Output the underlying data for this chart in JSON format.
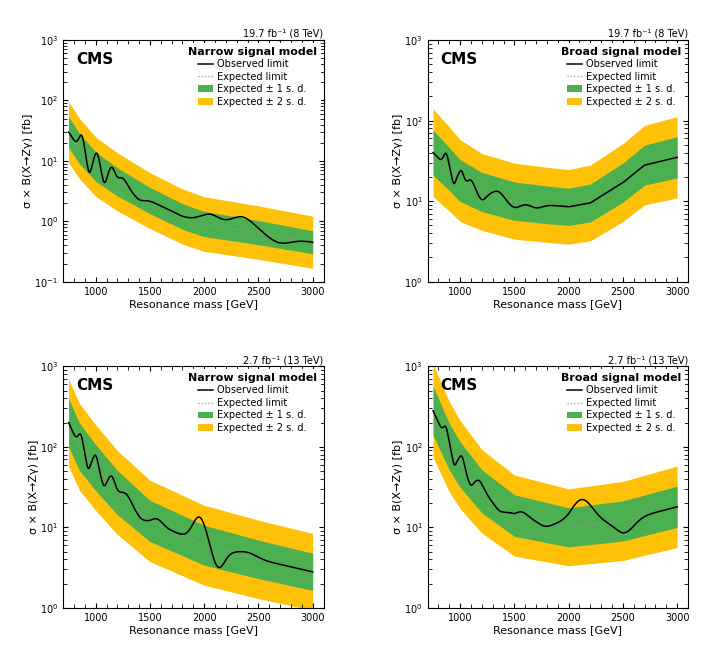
{
  "panels": [
    {
      "title": "Narrow signal model",
      "lumi": "19.7 fb⁻¹ (8 TeV)",
      "ylim": [
        0.1,
        1000
      ],
      "ylabel": "σ × B(X→Zγ) [fb]",
      "type": "narrow",
      "energy": "8TeV"
    },
    {
      "title": "Broad signal model",
      "lumi": "19.7 fb⁻¹ (8 TeV)",
      "ylim": [
        1,
        1000
      ],
      "ylabel": "σ × B(X→Zγ) [fb]",
      "type": "broad",
      "energy": "8TeV"
    },
    {
      "title": "Narrow signal model",
      "lumi": "2.7 fb⁻¹ (13 TeV)",
      "ylim": [
        1,
        1000
      ],
      "ylabel": "σ × B(X→Zγ) [fb]",
      "type": "narrow",
      "energy": "13TeV"
    },
    {
      "title": "Broad signal model",
      "lumi": "2.7 fb⁻¹ (13 TeV)",
      "ylim": [
        1,
        1000
      ],
      "ylabel": "σ × B(X→Zγ) [fb]",
      "type": "broad",
      "energy": "13TeV"
    }
  ],
  "xlabel": "Resonance mass [GeV]",
  "xlim": [
    700,
    3100
  ],
  "color_2sigma": "#FFC107",
  "color_1sigma": "#4CAF50",
  "legend_title_fontsize": 8,
  "legend_fontsize": 7,
  "cms_fontsize": 11,
  "lumi_fontsize": 7,
  "axis_label_fontsize": 8,
  "tick_fontsize": 7
}
